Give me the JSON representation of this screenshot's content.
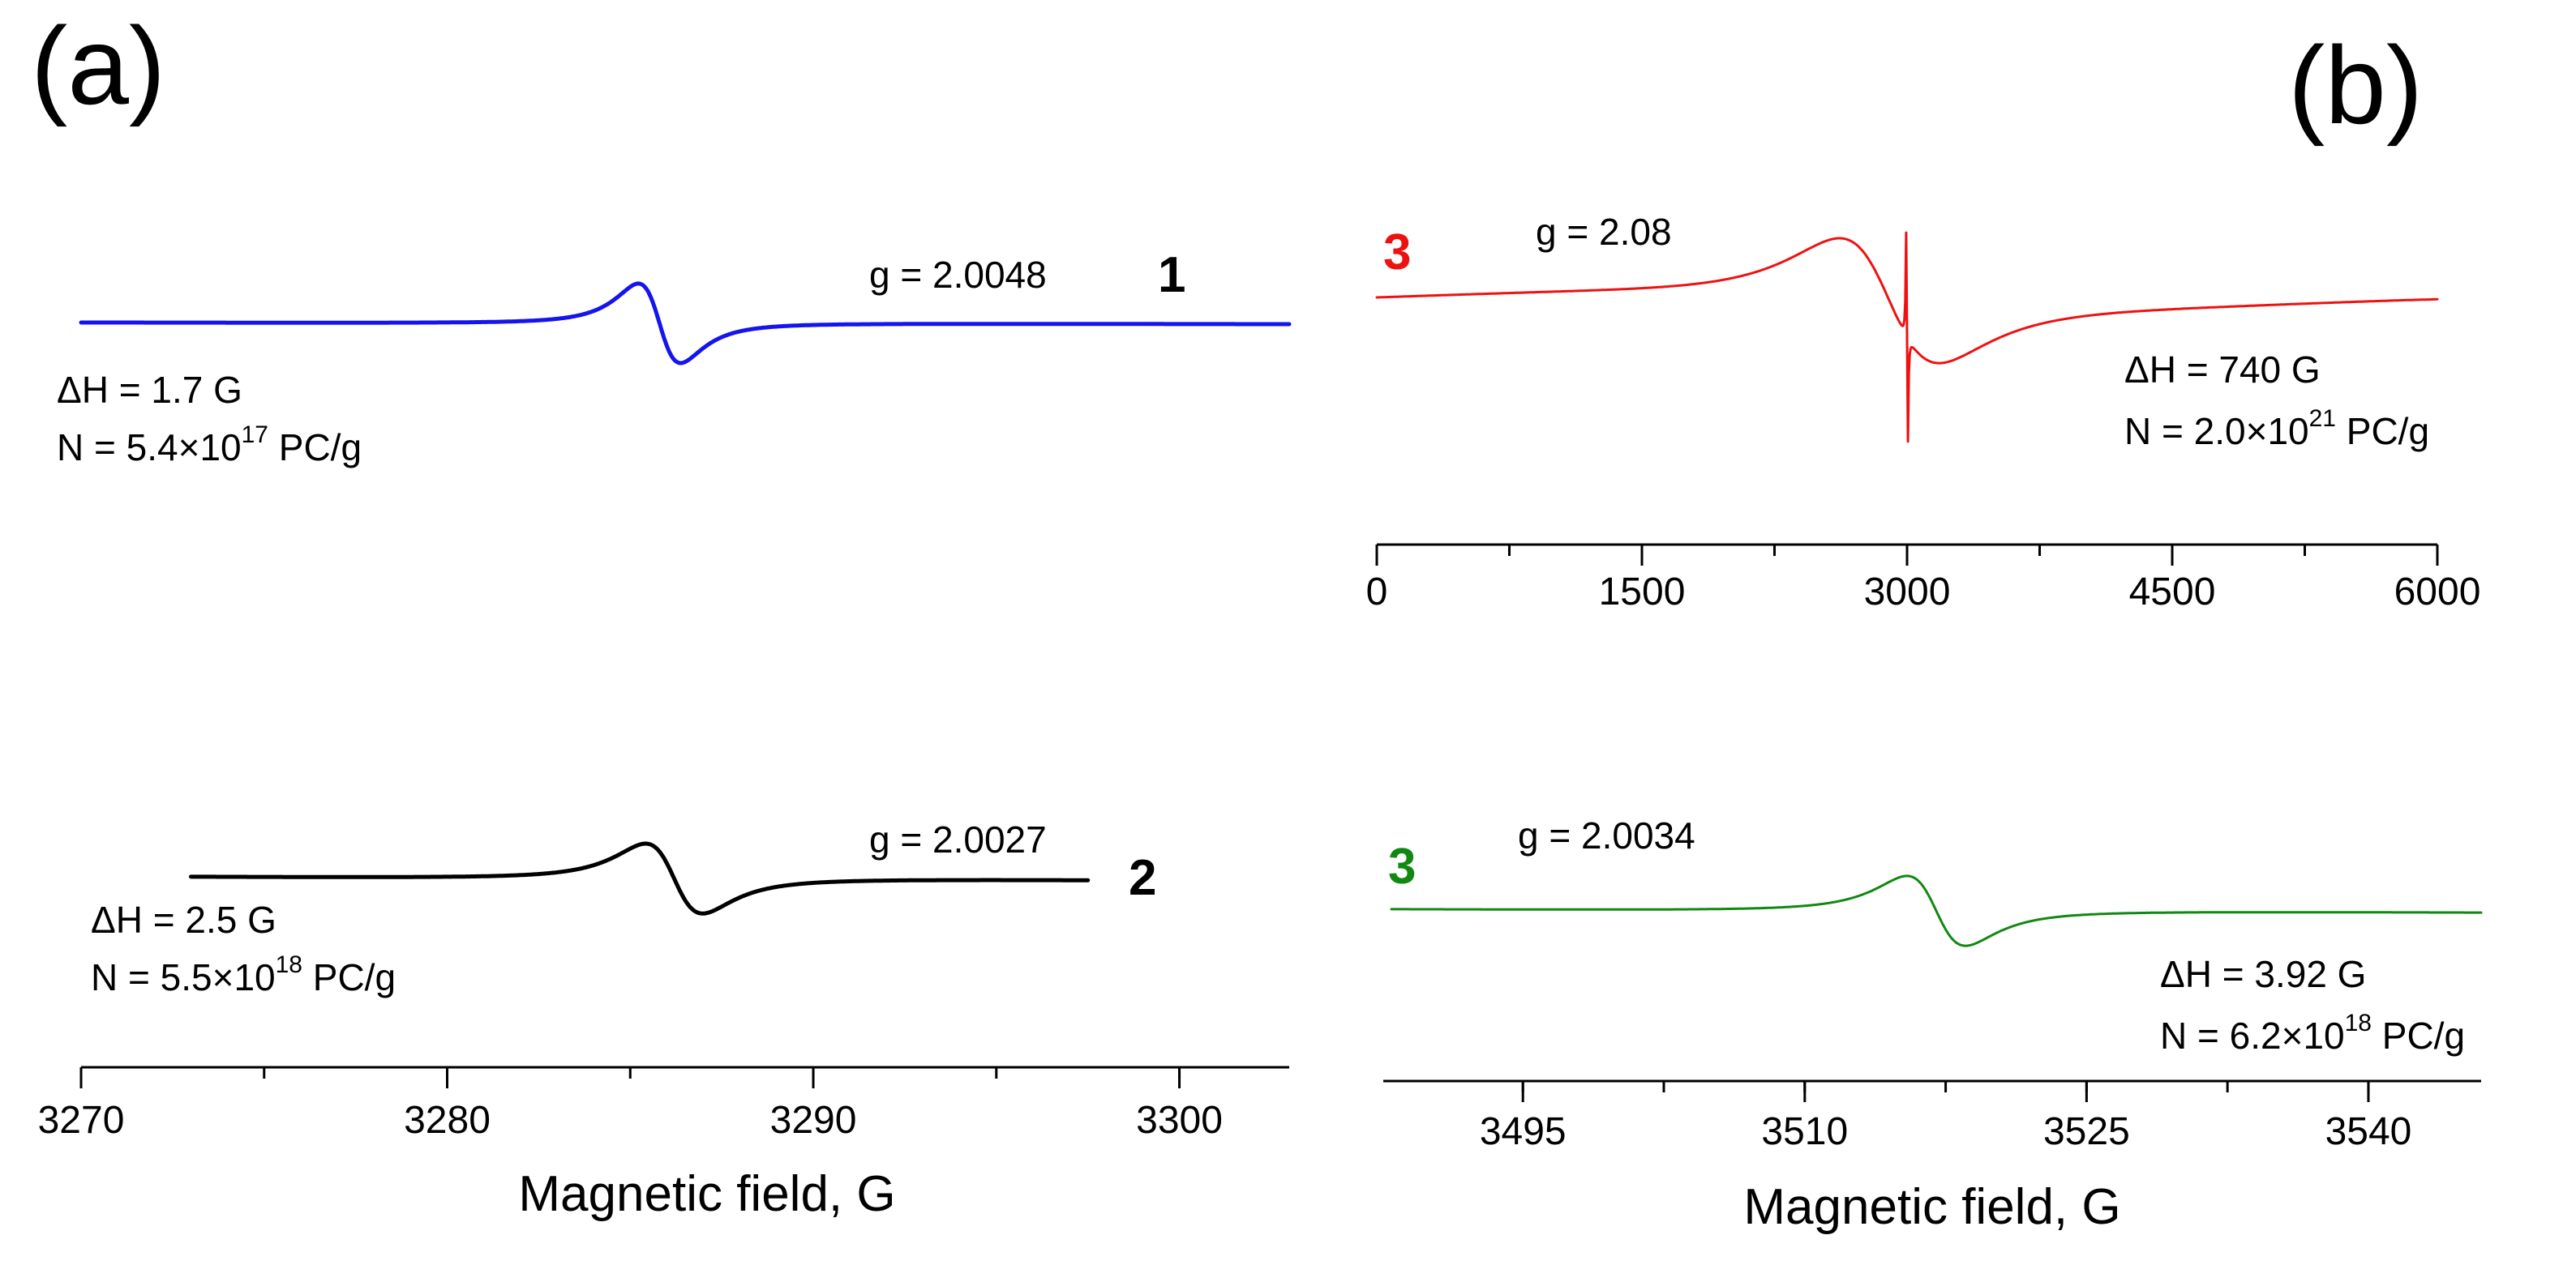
{
  "chart_data": [
    {
      "id": "a",
      "type": "line",
      "panel_label": "(a)",
      "xlabel": "Magnetic field, G",
      "ylabel": "",
      "xlim": [
        3270,
        3303
      ],
      "xticks": [
        3270,
        3280,
        3290,
        3300
      ],
      "xtick_labels": [
        "3270",
        "3280",
        "3290",
        "3300"
      ],
      "y_axis_visible": false,
      "series": [
        {
          "name": "1",
          "label": "1",
          "color": "#1414ee",
          "x_range": [
            3270,
            3303
          ],
          "center": 3285.8,
          "linewidth_G": 1.7,
          "g_label": "g = 2.0048",
          "dH_label": "ΔH = 1.7 G",
          "N_prefix": "N = 5.4×10",
          "N_exp": "17",
          "N_suffix": " PC/g"
        },
        {
          "name": "2",
          "label": "2",
          "color": "#000000",
          "x_range": [
            3273,
            3297.5
          ],
          "center": 3286.2,
          "linewidth_G": 2.5,
          "g_label": "g = 2.0027",
          "dH_label": "ΔH = 2.5 G",
          "N_prefix": "N = 5.5×10",
          "N_exp": "18",
          "N_suffix": " PC/g"
        }
      ]
    },
    {
      "id": "b-top",
      "type": "line",
      "panel_label": "(b)",
      "xlabel": "",
      "xlim": [
        0,
        6000
      ],
      "xticks": [
        0,
        1500,
        3000,
        4500,
        6000
      ],
      "xtick_labels": [
        "0",
        "1500",
        "3000",
        "4500",
        "6000"
      ],
      "y_axis_visible": false,
      "series": [
        {
          "name": "3",
          "label": "3",
          "color": "#ee1111",
          "x_range": [
            0,
            6000
          ],
          "center": 2900,
          "linewidth_G": 740,
          "narrow_line_center": 3000,
          "g_label": "g = 2.08",
          "dH_label": "ΔH = 740 G",
          "N_prefix": "N = 2.0×10",
          "N_exp": "21",
          "N_suffix": " PC/g"
        }
      ]
    },
    {
      "id": "b-bottom",
      "type": "line",
      "panel_label": "",
      "xlabel": "Magnetic field, G",
      "xlim": [
        3488,
        3546
      ],
      "xticks": [
        3495,
        3510,
        3525,
        3540
      ],
      "xtick_labels": [
        "3495",
        "3510",
        "3525",
        "3540"
      ],
      "y_axis_visible": false,
      "series": [
        {
          "name": "3",
          "label": "3",
          "color": "#118811",
          "x_range": [
            3488,
            3546
          ],
          "center": 3517,
          "linewidth_G": 3.92,
          "g_label": "g = 2.0034",
          "dH_label": "ΔH = 3.92 G",
          "N_prefix": "N = 6.2×10",
          "N_exp": "18",
          "N_suffix": " PC/g"
        }
      ]
    }
  ]
}
